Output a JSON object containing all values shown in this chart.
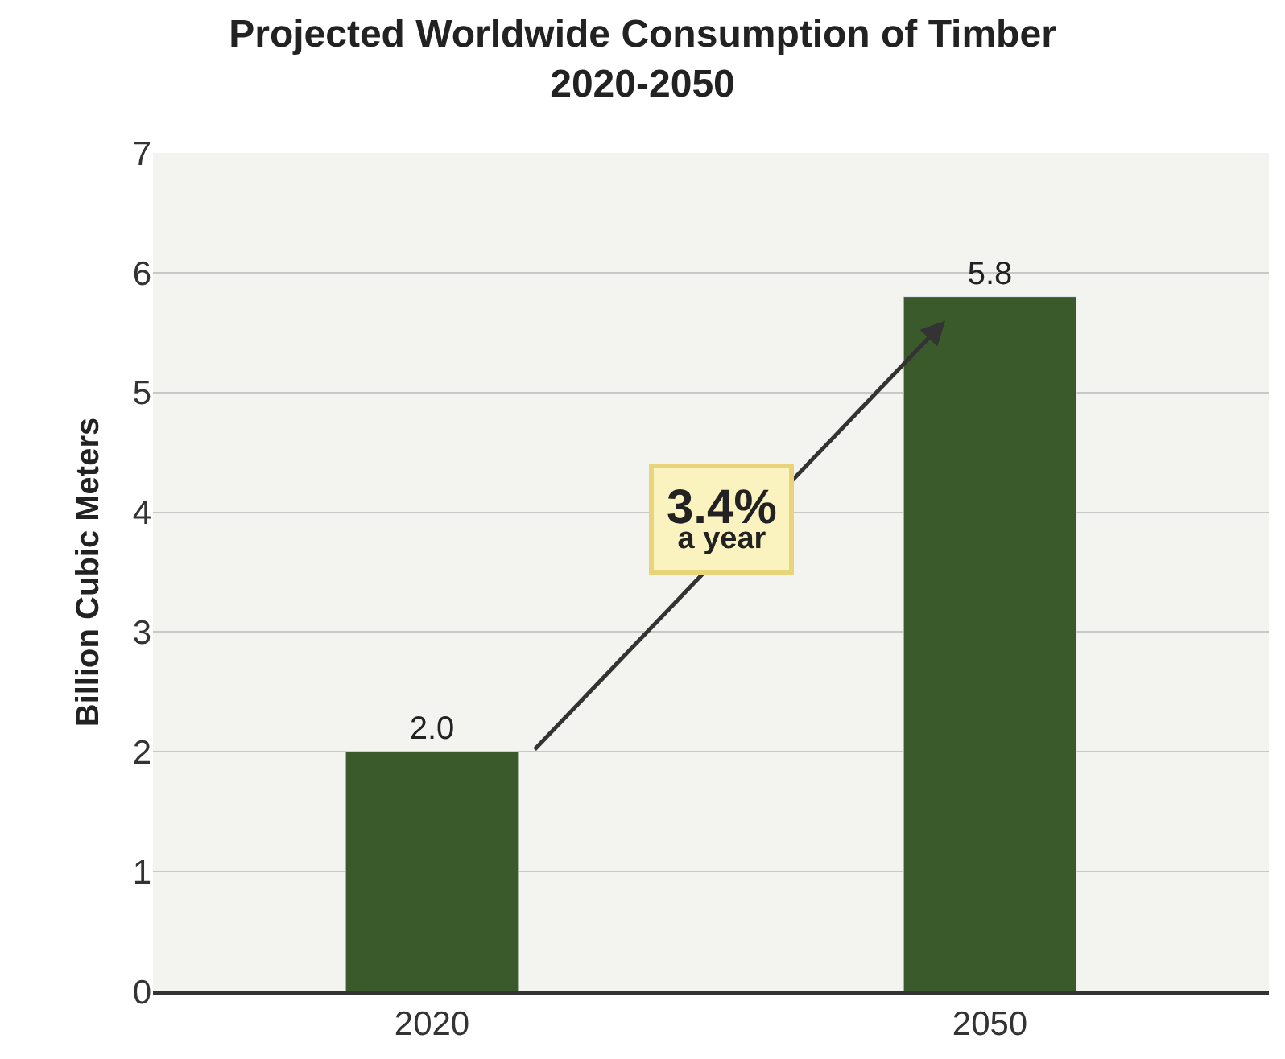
{
  "chart_data": {
    "type": "bar",
    "title": "Projected Worldwide Consumption of Timber\n2020-2050",
    "ylabel": "Billion Cubic Meters",
    "categories": [
      "2020",
      "2050"
    ],
    "values": [
      2.0,
      5.8
    ],
    "value_labels": [
      "2.0",
      "5.8"
    ],
    "color": "#3b5a2c",
    "ylim": [
      0,
      7
    ],
    "yticks": [
      0,
      1,
      2,
      3,
      4,
      5,
      6,
      7
    ],
    "grid": "y",
    "annotations": [
      "3.4%\na year"
    ]
  }
}
